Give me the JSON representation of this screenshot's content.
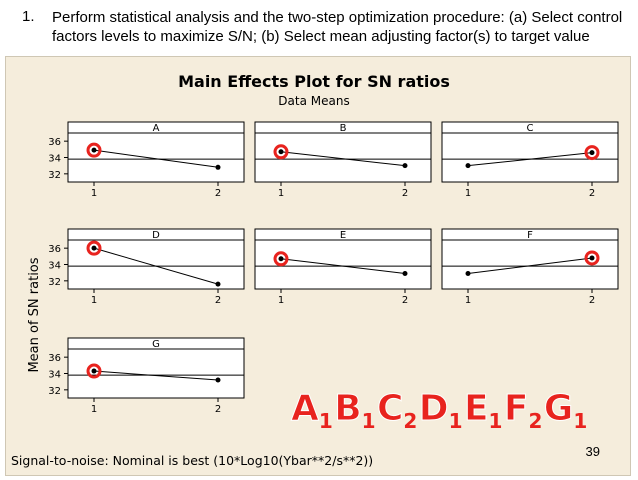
{
  "slide": {
    "item_number": "1.",
    "instruction": "Perform statistical analysis and the two-step optimization procedure: (a) Select control factors levels to maximize S/N; (b) Select mean adjusting factor(s) to target value",
    "page_number": "39"
  },
  "result_label": {
    "parts": [
      {
        "letter": "A",
        "sub": "1"
      },
      {
        "letter": "B",
        "sub": "1"
      },
      {
        "letter": "C",
        "sub": "2"
      },
      {
        "letter": "D",
        "sub": "1"
      },
      {
        "letter": "E",
        "sub": "1"
      },
      {
        "letter": "F",
        "sub": "2"
      },
      {
        "letter": "G",
        "sub": "1"
      }
    ],
    "color": "#e8231e"
  },
  "chart_data": {
    "type": "line",
    "title": "Main Effects Plot for SN ratios",
    "subtitle": "Data Means",
    "ylabel": "Mean of SN ratios",
    "footnote": "Signal-to-noise: Nominal is best (10*Log10(Ybar**2/s**2))",
    "ylim": [
      31,
      37
    ],
    "yticks": [
      32,
      34,
      36
    ],
    "hline": 33.8,
    "x_levels": [
      "1",
      "2"
    ],
    "colors": {
      "line": "#000000",
      "highlight": "#e8231e",
      "ref": "#000000"
    },
    "panels": [
      {
        "factor": "A",
        "values": [
          34.9,
          32.8
        ],
        "selected_level": "1"
      },
      {
        "factor": "B",
        "values": [
          34.7,
          33.0
        ],
        "selected_level": "1"
      },
      {
        "factor": "C",
        "values": [
          33.0,
          34.6
        ],
        "selected_level": "2"
      },
      {
        "factor": "D",
        "values": [
          36.0,
          31.6
        ],
        "selected_level": "1"
      },
      {
        "factor": "E",
        "values": [
          34.7,
          32.9
        ],
        "selected_level": "1"
      },
      {
        "factor": "F",
        "values": [
          32.9,
          34.8
        ],
        "selected_level": "2"
      },
      {
        "factor": "G",
        "values": [
          34.3,
          33.2
        ],
        "selected_level": "1"
      }
    ]
  }
}
